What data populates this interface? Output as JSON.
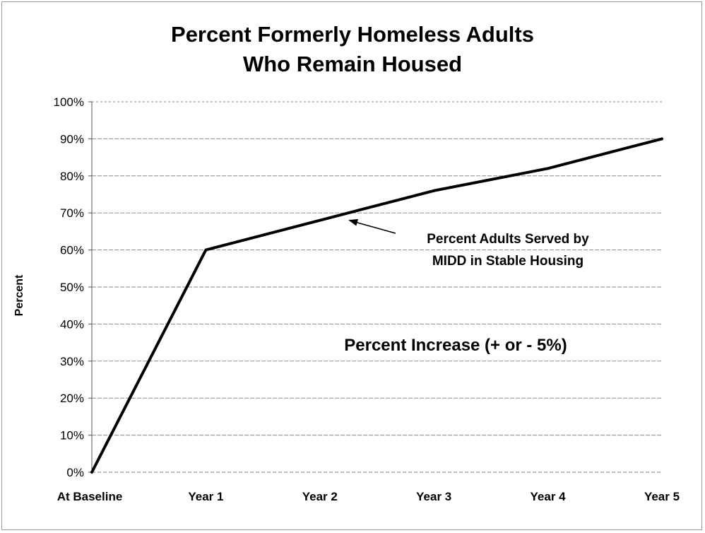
{
  "chart_data": {
    "type": "line",
    "title_lines": [
      "Percent Formerly Homeless Adults",
      "Who Remain Housed"
    ],
    "xlabel": "",
    "ylabel": "Percent",
    "categories": [
      "At Baseline",
      "Year 1",
      "Year 2",
      "Year 3",
      "Year 4",
      "Year 5"
    ],
    "y_ticks": [
      "0%",
      "10%",
      "20%",
      "30%",
      "40%",
      "50%",
      "60%",
      "70%",
      "80%",
      "90%",
      "100%"
    ],
    "ylim": [
      0,
      100
    ],
    "grid": true,
    "legend": "none",
    "series": [
      {
        "values": [
          0,
          60,
          68,
          76,
          82,
          90
        ],
        "color": "#000000"
      }
    ],
    "annotations": {
      "arrow_label_lines": [
        "Percent Adults Served by",
        "MIDD in Stable Housing"
      ],
      "arrow_target": {
        "x": 2.25,
        "y": 70
      },
      "note": "Percent Increase (+ or - 5%)"
    }
  }
}
